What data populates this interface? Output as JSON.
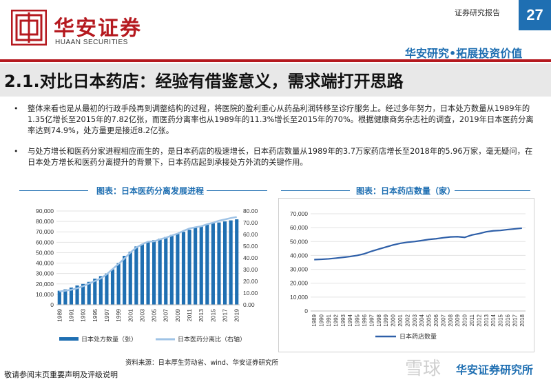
{
  "header": {
    "brand_cn": "华安证券",
    "brand_en": "HUAAN SECURITIES",
    "doc_type": "证券研究报告",
    "page_number": "27",
    "tagline": "华安研究•拓展投资价值"
  },
  "title": "2.1.对比日本药店：经验有借鉴意义，需求端打开思路",
  "bullets": [
    "整体来看也是从最初的行政手段再到调整结构的过程，将医院的盈利重心从药品利润转移至诊疗服务上。经过多年努力，日本处方数量从1989年的1.35亿增长至2015年的7.82亿张，而医药分离率也从1989年的11.3%增长至2015年的70%。根据健康商务杂志社的调查，2019年日本医药分离率达到74.9%，处方量更是接近8.2亿张。",
    "与处方增长和医药分家进程相应而生的，是日本药店的极速增长，日本药店数量从1989年的3.7万家药店增长至2018年的5.96万家，毫无疑问，在日本处方增长和医药分离提升的背景下，日本药店起到承接处方外流的关键作用。"
  ],
  "chart_data": [
    {
      "type": "bar",
      "title": "图表：日本医药分离发展进程",
      "categories": [
        "1989",
        "1990",
        "1991",
        "1992",
        "1993",
        "1994",
        "1995",
        "1996",
        "1997",
        "1998",
        "1999",
        "2000",
        "2001",
        "2002",
        "2003",
        "2004",
        "2005",
        "2006",
        "2007",
        "2008",
        "2009",
        "2010",
        "2011",
        "2012",
        "2013",
        "2014",
        "2015",
        "2016",
        "2017",
        "2018",
        "2019"
      ],
      "x_tick_labels": [
        "1989",
        "1991",
        "1993",
        "1995",
        "1997",
        "1999",
        "2001",
        "2003",
        "2005",
        "2007",
        "2009",
        "2011",
        "2013",
        "2015",
        "2017",
        "2019"
      ],
      "series": [
        {
          "name": "日本处方数量（张）",
          "type": "bar",
          "axis": "left",
          "color": "#1f6fb2",
          "values": [
            13500,
            14800,
            16500,
            18500,
            20000,
            22000,
            25000,
            27500,
            30000,
            34000,
            40000,
            47000,
            51000,
            56000,
            58000,
            60000,
            62000,
            63500,
            65000,
            67000,
            68500,
            70000,
            72000,
            74000,
            75500,
            77000,
            78200,
            79000,
            80000,
            81000,
            82000
          ]
        },
        {
          "name": "日本医药分离比（右轴）",
          "type": "line",
          "axis": "right",
          "color": "#9fc3e6",
          "values": [
            11.3,
            12.0,
            12.8,
            14.1,
            15.8,
            18.1,
            20.3,
            22.5,
            26.0,
            30.5,
            34.8,
            39.5,
            44.5,
            48.8,
            51.6,
            53.8,
            54.1,
            55.8,
            57.2,
            59.1,
            60.7,
            63.1,
            65.1,
            66.1,
            67.0,
            68.7,
            70.0,
            71.7,
            72.8,
            74.0,
            74.9
          ]
        }
      ],
      "y_left": {
        "ticks": [
          "0",
          "10,000",
          "20,000",
          "30,000",
          "40,000",
          "50,000",
          "60,000",
          "70,000",
          "80,000",
          "90,000"
        ],
        "ylim": [
          0,
          90000
        ]
      },
      "y_right": {
        "ticks": [
          "0.00",
          "10.00",
          "20.00",
          "30.00",
          "40.00",
          "50.00",
          "60.00",
          "70.00",
          "80.00"
        ],
        "ylim": [
          0,
          80
        ]
      },
      "legend": "bottom"
    },
    {
      "type": "line",
      "title": "图表：日本药店数量（家）",
      "x": [
        "1989",
        "1990",
        "1991",
        "1992",
        "1993",
        "1994",
        "1995",
        "1996",
        "1997",
        "1998",
        "1999",
        "2000",
        "2001",
        "2002",
        "2003",
        "2004",
        "2005",
        "2006",
        "2007",
        "2008",
        "2009",
        "2010",
        "2011",
        "2012",
        "2013",
        "2014",
        "2015",
        "2016",
        "2017",
        "2018"
      ],
      "series": [
        {
          "name": "日本药店数量",
          "color": "#2e5fa8",
          "values": [
            37000,
            37200,
            37500,
            38000,
            38600,
            39200,
            40000,
            41200,
            43000,
            44500,
            46000,
            47500,
            48700,
            49500,
            50000,
            50700,
            51500,
            52000,
            52700,
            53300,
            53500,
            53000,
            54700,
            55700,
            57000,
            57700,
            58000,
            58600,
            59100,
            59600
          ]
        }
      ],
      "y": {
        "ticks": [
          "0",
          "10,000",
          "20,000",
          "30,000",
          "40,000",
          "50,000",
          "60,000",
          "70,000"
        ],
        "ylim": [
          0,
          70000
        ]
      },
      "legend": "bottom"
    }
  ],
  "source": "资料来源：日本厚生劳动省、wind、华安证券研究所",
  "footer": {
    "note": "敬请参阅末页重要声明及评级说明",
    "brand": "华安证券研究所",
    "watermark": "雪球"
  }
}
